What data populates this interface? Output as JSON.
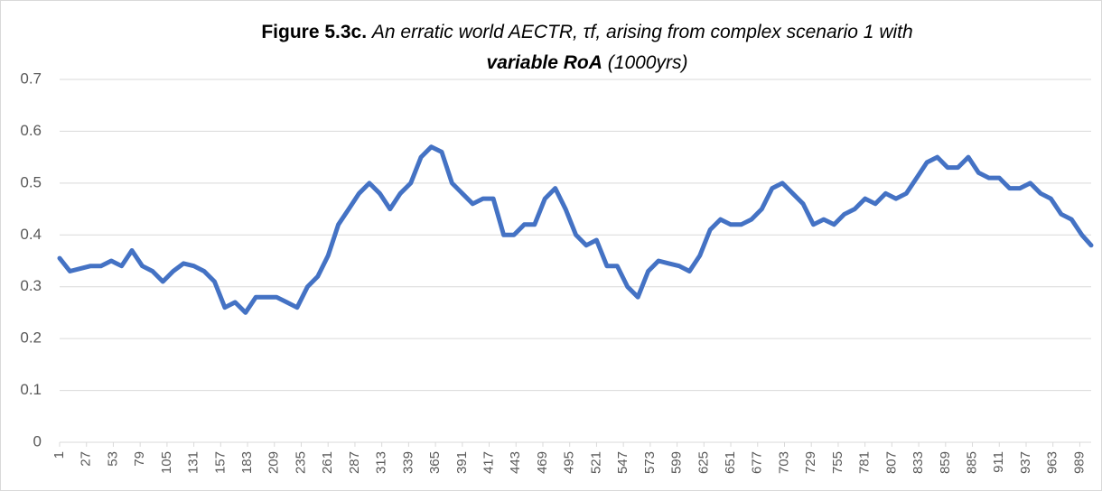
{
  "chart_data": {
    "type": "line",
    "title": {
      "label": "Figure 5.3c.",
      "text": "An erratic world AECTR, τf, arising from complex scenario 1 with",
      "emphasis": "variable RoA",
      "note": "(1000yrs)"
    },
    "x": [
      1,
      11,
      21,
      31,
      41,
      51,
      61,
      71,
      81,
      91,
      101,
      111,
      121,
      131,
      141,
      151,
      161,
      171,
      181,
      191,
      201,
      211,
      221,
      231,
      241,
      251,
      261,
      271,
      281,
      291,
      301,
      311,
      321,
      331,
      341,
      351,
      361,
      371,
      381,
      391,
      401,
      411,
      421,
      431,
      441,
      451,
      461,
      471,
      481,
      491,
      501,
      511,
      521,
      531,
      541,
      551,
      561,
      571,
      581,
      591,
      601,
      611,
      621,
      631,
      641,
      651,
      661,
      671,
      681,
      691,
      701,
      711,
      721,
      731,
      741,
      751,
      761,
      771,
      781,
      791,
      801,
      811,
      821,
      831,
      841,
      851,
      861,
      871,
      881,
      891,
      901,
      911,
      921,
      931,
      941,
      951,
      961,
      971,
      981,
      991,
      1000
    ],
    "series": [
      {
        "color": "#4472c4",
        "values": [
          0.355,
          0.33,
          0.335,
          0.34,
          0.34,
          0.35,
          0.34,
          0.37,
          0.34,
          0.33,
          0.31,
          0.33,
          0.345,
          0.34,
          0.33,
          0.31,
          0.26,
          0.27,
          0.25,
          0.28,
          0.28,
          0.28,
          0.27,
          0.26,
          0.3,
          0.32,
          0.36,
          0.42,
          0.45,
          0.48,
          0.5,
          0.48,
          0.45,
          0.48,
          0.5,
          0.55,
          0.57,
          0.56,
          0.5,
          0.48,
          0.46,
          0.47,
          0.47,
          0.4,
          0.4,
          0.42,
          0.42,
          0.47,
          0.49,
          0.45,
          0.4,
          0.38,
          0.39,
          0.34,
          0.34,
          0.3,
          0.28,
          0.33,
          0.35,
          0.345,
          0.34,
          0.33,
          0.36,
          0.41,
          0.43,
          0.42,
          0.42,
          0.43,
          0.45,
          0.49,
          0.5,
          0.48,
          0.46,
          0.42,
          0.43,
          0.42,
          0.44,
          0.45,
          0.47,
          0.46,
          0.48,
          0.47,
          0.48,
          0.51,
          0.54,
          0.55,
          0.53,
          0.53,
          0.55,
          0.52,
          0.51,
          0.51,
          0.49,
          0.49,
          0.5,
          0.48,
          0.47,
          0.44,
          0.43,
          0.4,
          0.38
        ]
      }
    ],
    "xlim": [
      1,
      1000
    ],
    "xticks": [
      1,
      27,
      53,
      79,
      105,
      131,
      157,
      183,
      209,
      235,
      261,
      287,
      313,
      339,
      365,
      391,
      417,
      443,
      469,
      495,
      521,
      547,
      573,
      599,
      625,
      651,
      677,
      703,
      729,
      755,
      781,
      807,
      833,
      859,
      885,
      911,
      937,
      963,
      989
    ],
    "ylim": [
      0,
      0.7
    ],
    "yticks": [
      0,
      0.1,
      0.2,
      0.3,
      0.4,
      0.5,
      0.6,
      0.7
    ],
    "grid": true
  }
}
